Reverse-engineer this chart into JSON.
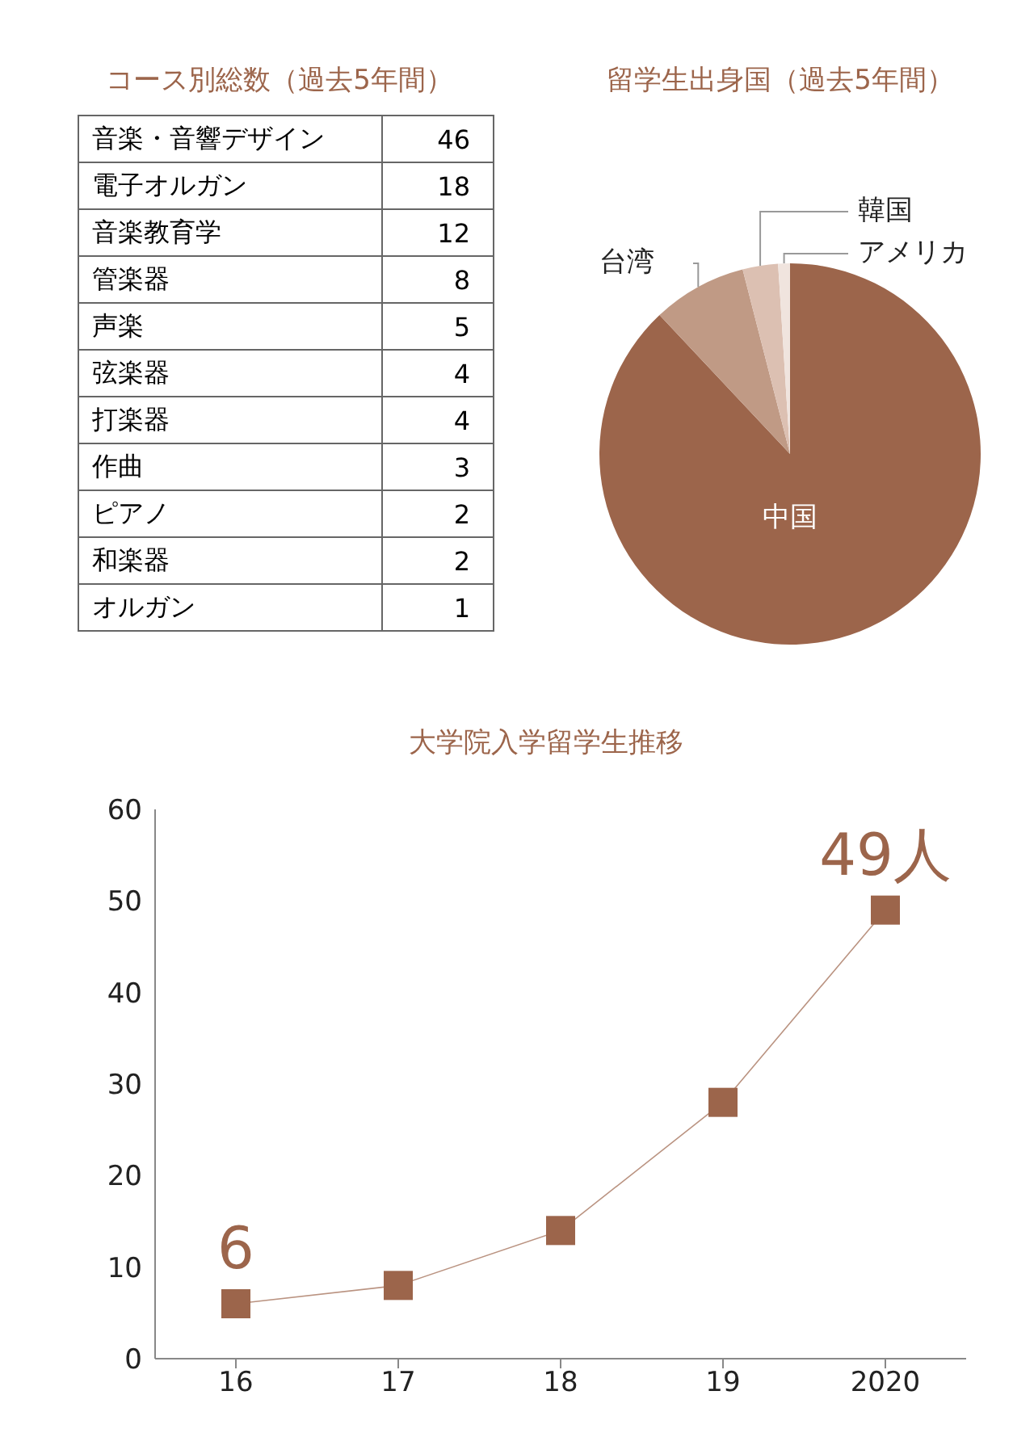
{
  "chart_data": [
    {
      "type": "other",
      "title": "コース別総数（過去5年間）",
      "categories": [
        "音楽・音響デザイン",
        "電子オルガン",
        "音楽教育学",
        "管楽器",
        "声楽",
        "弦楽器",
        "打楽器",
        "作曲",
        "ピアノ",
        "和楽器",
        "オルガン"
      ],
      "values": [
        46,
        18,
        12,
        8,
        5,
        4,
        4,
        3,
        2,
        2,
        1
      ],
      "data_labels": true
    },
    {
      "type": "pie",
      "title": "留学生出身国（過去5年間）",
      "categories": [
        "中国",
        "台湾",
        "韓国",
        "アメリカ"
      ],
      "values": [
        88,
        8,
        3,
        1
      ],
      "colors": [
        "#9c654b",
        "#c09a85",
        "#dcc0b2",
        "#f0e4de"
      ]
    },
    {
      "type": "line",
      "title": "大学院入学留学生推移",
      "categories": [
        "16",
        "17",
        "18",
        "19",
        "2020"
      ],
      "series": [
        {
          "color": "#9c654b",
          "values": [
            6,
            8,
            14,
            28,
            49
          ],
          "value_labels": [
            "6",
            null,
            null,
            null,
            "49人"
          ]
        }
      ],
      "ylim": [
        0,
        60
      ],
      "yticks": [
        0,
        10,
        20,
        30,
        40,
        50,
        60
      ],
      "grid": false,
      "legend": false,
      "marker": "square",
      "line_style": "solid"
    }
  ]
}
